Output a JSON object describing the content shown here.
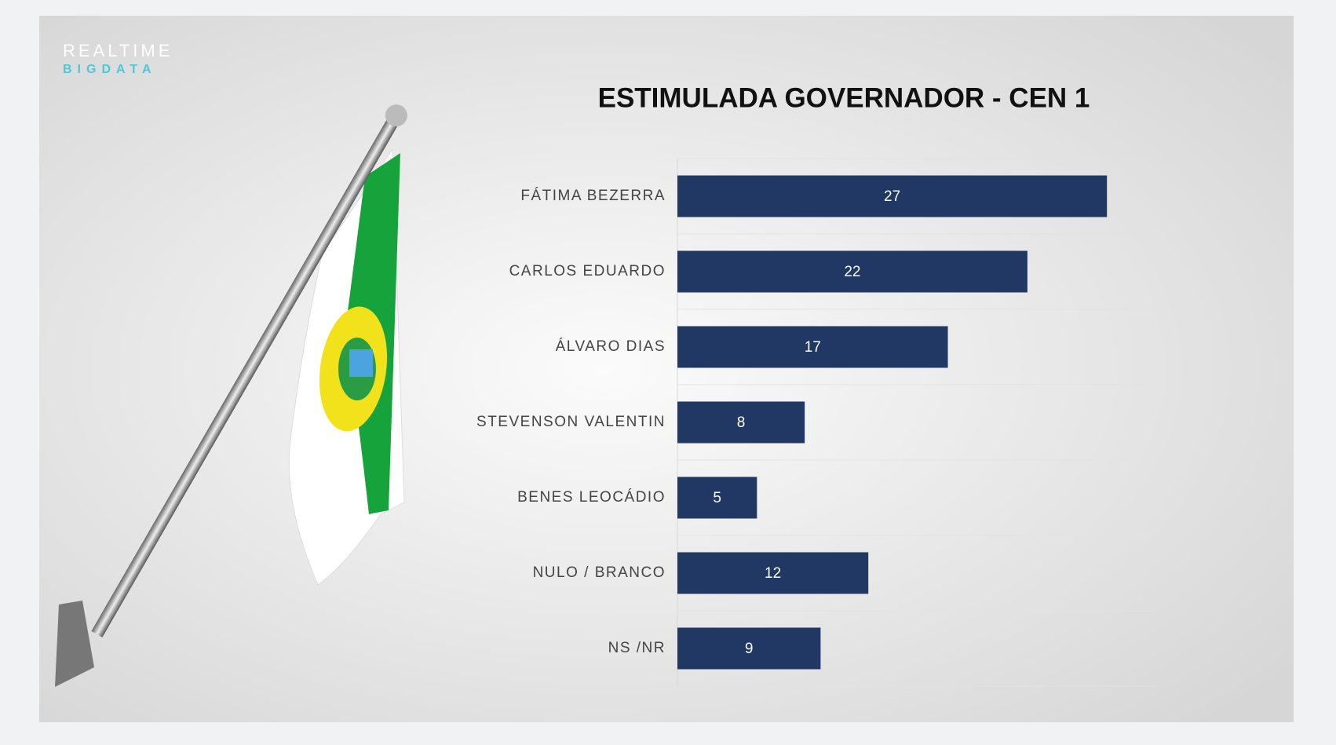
{
  "chart_data": {
    "type": "barh",
    "title": "ESTIMULADA GOVERNADOR - CEN 1",
    "annotations": [
      "REALTIME",
      "BIGDATA"
    ],
    "categories": [
      "FÁTIMA BEZERRA",
      "CARLOS EDUARDO",
      "ÁLVARO DIAS",
      "STEVENSON VALENTIN",
      "BENES LEOCÁDIO",
      "NULO / BRANCO",
      "NS /NR"
    ],
    "values": [
      27,
      22,
      17,
      8,
      5,
      12,
      9
    ],
    "color": "#213865",
    "xlim": [
      0,
      30
    ]
  }
}
